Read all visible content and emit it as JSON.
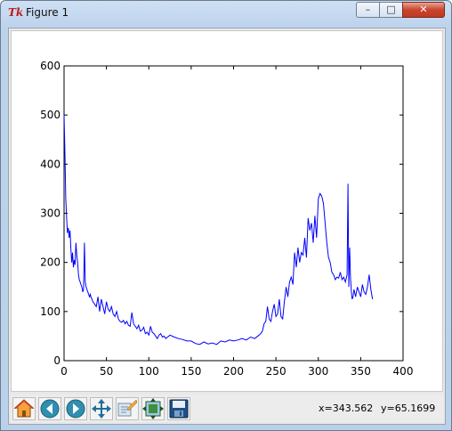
{
  "window": {
    "title": "Figure 1",
    "app_icon": "tk-feather-icon",
    "controls": [
      "minimize-icon",
      "maximize-icon",
      "close-icon"
    ]
  },
  "toolbar": {
    "buttons": [
      "home-icon",
      "back-icon",
      "forward-icon",
      "pan-icon",
      "zoom-icon",
      "subplots-icon",
      "save-icon"
    ],
    "coord_x": "x=343.562",
    "coord_y": "y=65.1699"
  },
  "colors": {
    "line": "#0000ff",
    "axes": "#000000",
    "background": "#ffffff"
  },
  "chart_data": {
    "type": "line",
    "title": "",
    "xlabel": "",
    "ylabel": "",
    "xlim": [
      0,
      400
    ],
    "ylim": [
      0,
      600
    ],
    "xticks": [
      0,
      50,
      100,
      150,
      200,
      250,
      300,
      350,
      400
    ],
    "yticks": [
      0,
      100,
      200,
      300,
      400,
      500,
      600
    ],
    "grid": false,
    "series": [
      {
        "x": [
          0,
          1,
          2,
          3,
          4,
          5,
          6,
          7,
          8,
          9,
          10,
          11,
          12,
          13,
          14,
          15,
          16,
          17,
          18,
          19,
          20,
          21,
          22,
          23,
          24,
          25,
          26,
          27,
          28,
          29,
          30,
          31,
          32,
          33,
          34,
          35,
          36,
          38,
          40,
          42,
          44,
          46,
          48,
          50,
          52,
          54,
          56,
          58,
          60,
          62,
          64,
          66,
          68,
          70,
          72,
          74,
          76,
          78,
          80,
          82,
          84,
          86,
          88,
          90,
          92,
          94,
          96,
          98,
          100,
          102,
          104,
          106,
          108,
          110,
          112,
          114,
          116,
          118,
          120,
          125,
          130,
          135,
          140,
          145,
          150,
          155,
          160,
          165,
          170,
          175,
          180,
          185,
          190,
          195,
          200,
          205,
          210,
          215,
          220,
          225,
          230,
          232,
          234,
          236,
          238,
          240,
          242,
          244,
          246,
          248,
          250,
          252,
          254,
          256,
          258,
          260,
          262,
          264,
          266,
          268,
          270,
          272,
          274,
          276,
          278,
          280,
          282,
          284,
          286,
          288,
          290,
          292,
          294,
          296,
          298,
          300,
          302,
          304,
          306,
          308,
          310,
          312,
          314,
          316,
          318,
          320,
          322,
          324,
          326,
          328,
          330,
          332,
          334,
          335,
          336,
          337,
          338,
          339,
          340,
          341,
          342,
          344,
          346,
          348,
          350,
          352,
          354,
          356,
          358,
          360,
          362,
          364
        ],
        "y": [
          500,
          420,
          330,
          290,
          260,
          270,
          250,
          265,
          230,
          200,
          220,
          190,
          205,
          195,
          240,
          215,
          200,
          175,
          165,
          160,
          155,
          150,
          140,
          145,
          240,
          160,
          150,
          145,
          140,
          135,
          130,
          135,
          128,
          125,
          120,
          118,
          115,
          110,
          130,
          100,
          125,
          110,
          95,
          120,
          105,
          100,
          110,
          95,
          90,
          100,
          85,
          80,
          78,
          82,
          75,
          80,
          72,
          70,
          98,
          75,
          70,
          65,
          72,
          60,
          62,
          68,
          55,
          58,
          52,
          70,
          58,
          55,
          50,
          45,
          52,
          55,
          48,
          50,
          45,
          52,
          48,
          45,
          43,
          40,
          40,
          35,
          33,
          38,
          34,
          36,
          33,
          40,
          38,
          42,
          40,
          42,
          45,
          42,
          48,
          45,
          52,
          55,
          60,
          75,
          80,
          110,
          85,
          80,
          100,
          115,
          90,
          95,
          125,
          90,
          85,
          120,
          150,
          130,
          160,
          170,
          155,
          220,
          190,
          230,
          200,
          220,
          215,
          250,
          210,
          290,
          265,
          280,
          240,
          295,
          250,
          330,
          340,
          335,
          320,
          280,
          240,
          210,
          200,
          180,
          175,
          165,
          170,
          168,
          180,
          165,
          170,
          160,
          175,
          360,
          150,
          230,
          170,
          140,
          125,
          130,
          145,
          130,
          150,
          140,
          130,
          155,
          140,
          135,
          150,
          175,
          145,
          125
        ]
      }
    ]
  }
}
